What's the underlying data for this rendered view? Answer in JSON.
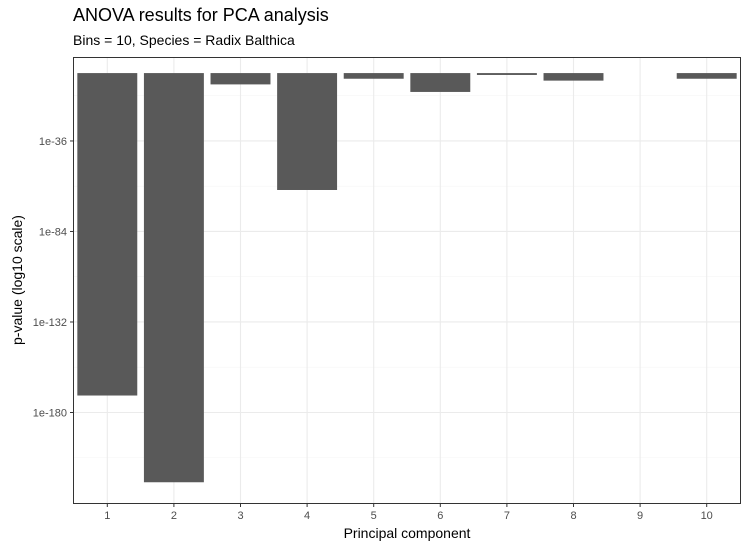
{
  "chart_data": {
    "type": "bar",
    "title": "ANOVA results for PCA analysis",
    "subtitle": "Bins = 10, Species = Radix Balthica",
    "xlabel": "Principal component",
    "ylabel": "p-value (log10 scale)",
    "y_scale": "log10",
    "categories": [
      "1",
      "2",
      "3",
      "4",
      "5",
      "6",
      "7",
      "8",
      "9",
      "10"
    ],
    "values": [
      1e-171,
      1e-217,
      1e-06,
      1e-62,
      0.001,
      1e-10,
      0.1,
      0.0001,
      1,
      0.001
    ],
    "y_ticks": [
      {
        "exp": -36,
        "label": "1e-36"
      },
      {
        "exp": -84,
        "label": "1e-84"
      },
      {
        "exp": -132,
        "label": "1e-132"
      },
      {
        "exp": -180,
        "label": "1e-180"
      }
    ],
    "ylim_log10": [
      -228,
      8
    ],
    "grid": true,
    "colors": {
      "bar": "#595959",
      "panel_border": "#333333",
      "major_grid": "#ebebeb",
      "minor_grid": "#f5f5f5"
    }
  }
}
